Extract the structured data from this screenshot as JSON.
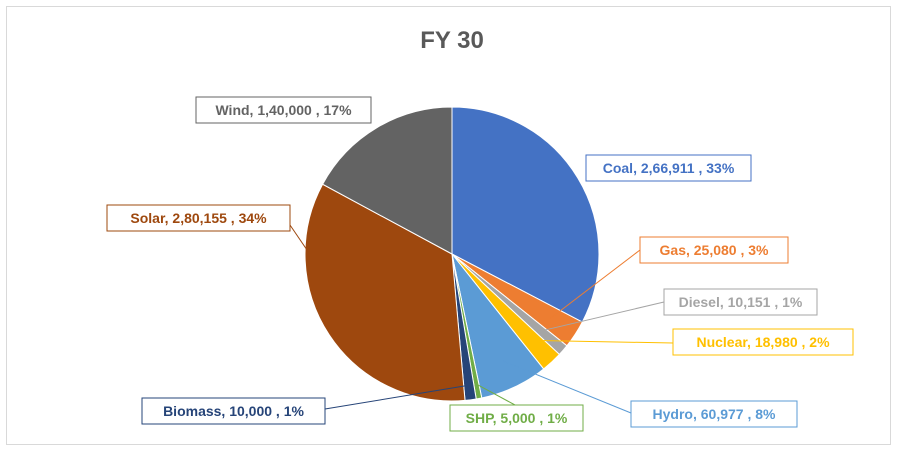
{
  "chart_data": {
    "type": "pie",
    "title": "FY 30",
    "slices": [
      {
        "name": "Coal",
        "value": "2,66,911",
        "percent": "33%",
        "color": "#4472c4"
      },
      {
        "name": "Gas",
        "value": "25,080",
        "percent": "3%",
        "color": "#ed7d31"
      },
      {
        "name": "Diesel",
        "value": "10,151",
        "percent": "1%",
        "color": "#a5a5a5"
      },
      {
        "name": "Nuclear",
        "value": "18,980",
        "percent": "2%",
        "color": "#ffc000"
      },
      {
        "name": "Hydro",
        "value": "60,977",
        "percent": "8%",
        "color": "#5b9bd5"
      },
      {
        "name": "SHP",
        "value": "5,000",
        "percent": "1%",
        "color": "#70ad47"
      },
      {
        "name": "Biomass",
        "value": "10,000",
        "percent": "1%",
        "color": "#264478"
      },
      {
        "name": "Solar",
        "value": "2,80,155",
        "percent": "34%",
        "color": "#9e480e"
      },
      {
        "name": "Wind",
        "value": "1,40,000",
        "percent": "17%",
        "color": "#636363"
      }
    ]
  }
}
